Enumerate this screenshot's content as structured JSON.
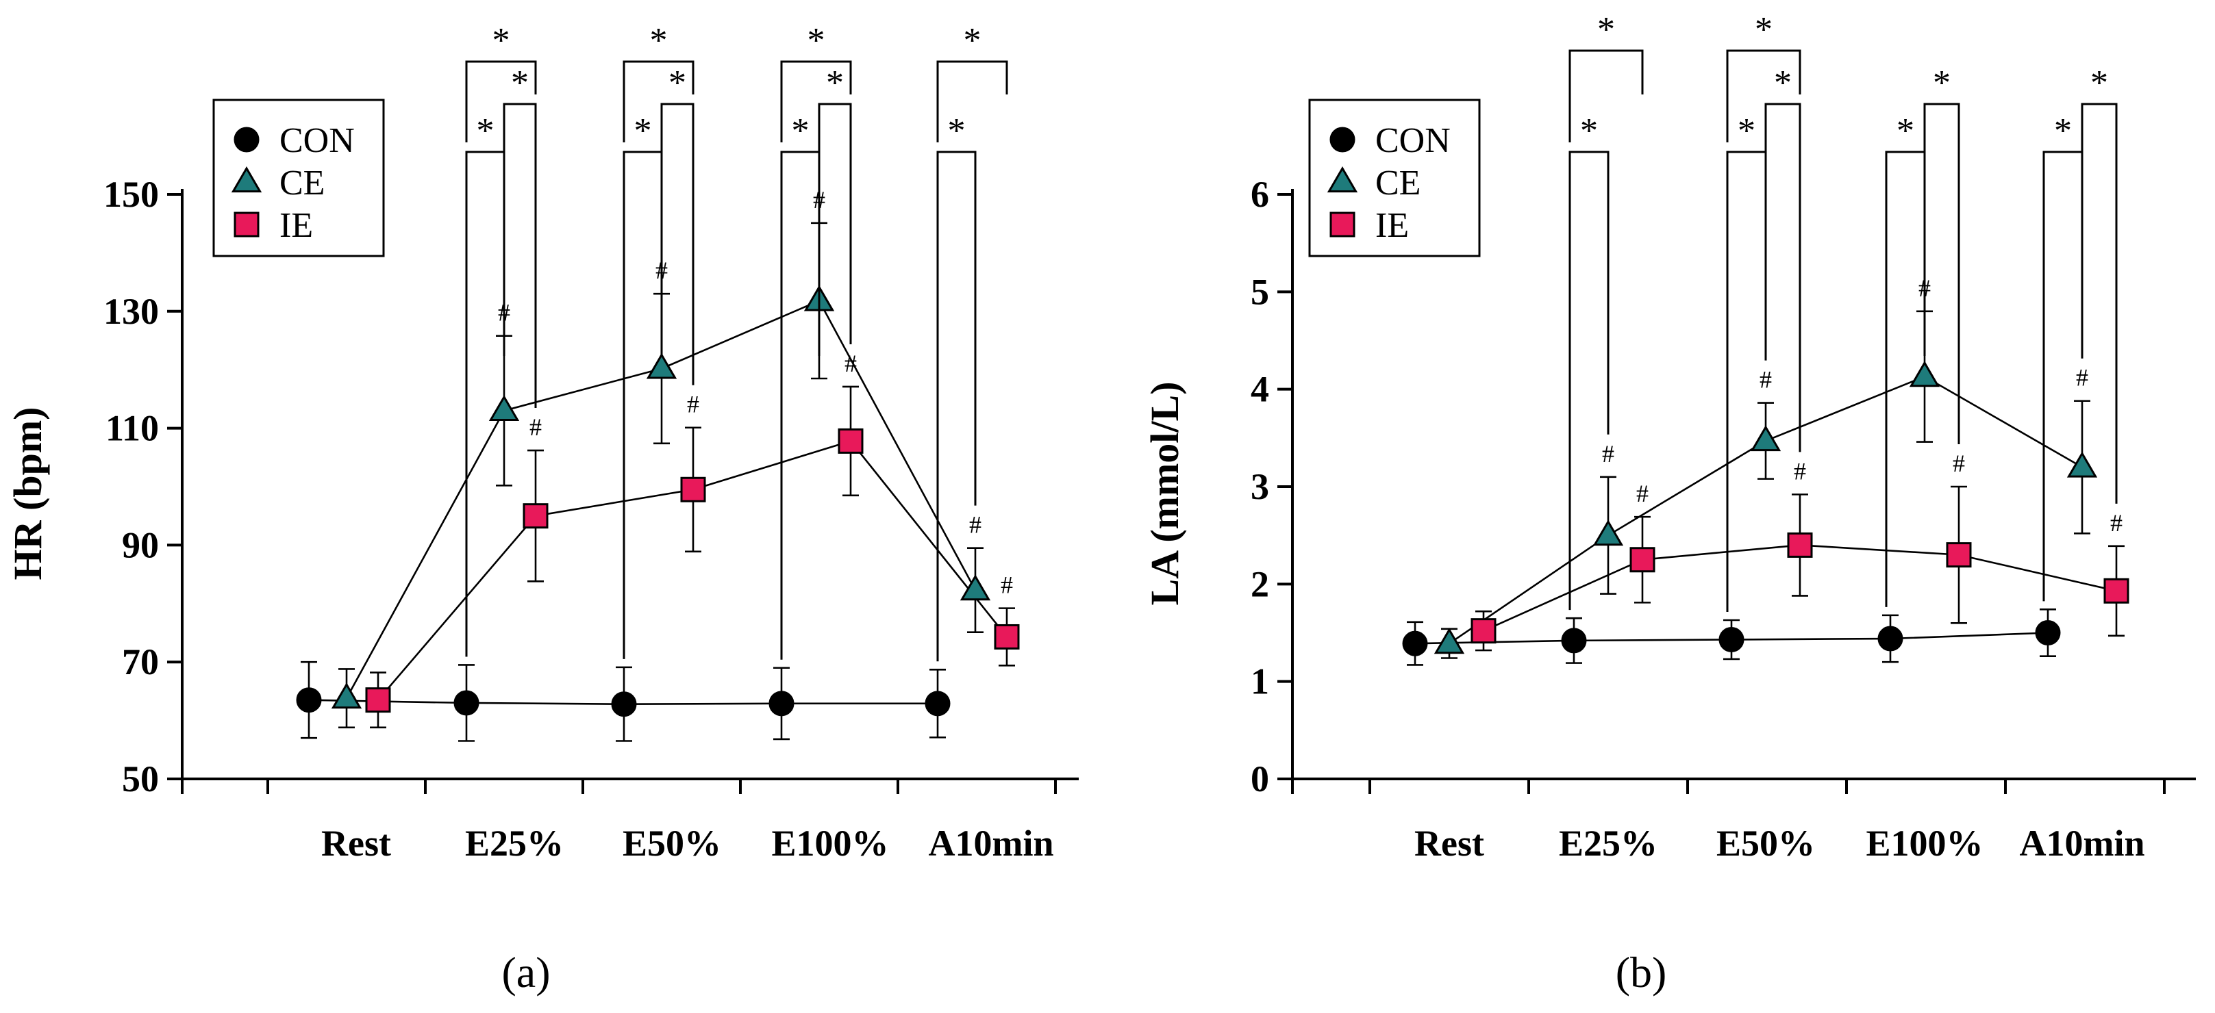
{
  "chart_data": [
    {
      "panel_label": "(a)",
      "type": "line",
      "ylabel": "HR (bpm)",
      "ylim": [
        50,
        150
      ],
      "yticks": [
        50,
        70,
        90,
        110,
        130,
        150
      ],
      "categories": [
        "Rest",
        "E25%",
        "E50%",
        "E100%",
        "A10min"
      ],
      "series": [
        {
          "name": "CON",
          "marker": "circle",
          "color": "#000000",
          "values": [
            63.5,
            63,
            62.8,
            62.9,
            62.9
          ],
          "errors": [
            6.5,
            6.5,
            6.3,
            6.1,
            5.8
          ],
          "hash": [
            false,
            false,
            false,
            false,
            false
          ]
        },
        {
          "name": "CE",
          "marker": "triangle",
          "color": "#1E7B7B",
          "values": [
            63.8,
            113,
            120.2,
            131.8,
            82.3
          ],
          "errors": [
            5,
            12.8,
            12.8,
            13.3,
            7.2
          ],
          "hash": [
            false,
            true,
            true,
            true,
            true
          ]
        },
        {
          "name": "IE",
          "marker": "square",
          "color": "#E8195A",
          "values": [
            63.5,
            95,
            99.5,
            107.8,
            74.3
          ],
          "errors": [
            4.7,
            11.2,
            10.6,
            9.3,
            4.9
          ],
          "hash": [
            false,
            true,
            true,
            true,
            true
          ]
        }
      ],
      "hash_symbol": "#",
      "significance_symbol": "*",
      "significance": [
        {
          "stage": 1,
          "pairs": [
            "CON-CE",
            "CE-IE",
            "CON-IE"
          ]
        },
        {
          "stage": 2,
          "pairs": [
            "CON-CE",
            "CE-IE",
            "CON-IE"
          ]
        },
        {
          "stage": 3,
          "pairs": [
            "CON-CE",
            "CE-IE",
            "CON-IE"
          ]
        },
        {
          "stage": 4,
          "pairs": [
            "CON-CE",
            "CON-IE"
          ]
        }
      ]
    },
    {
      "panel_label": "(b)",
      "type": "line",
      "ylabel": "LA (mmol/L)",
      "ylim": [
        0,
        6
      ],
      "yticks": [
        0,
        1,
        2,
        3,
        4,
        5,
        6
      ],
      "categories": [
        "Rest",
        "E25%",
        "E50%",
        "E100%",
        "A10min"
      ],
      "series": [
        {
          "name": "CON",
          "marker": "circle",
          "color": "#000000",
          "values": [
            1.39,
            1.42,
            1.43,
            1.44,
            1.5
          ],
          "errors": [
            0.22,
            0.23,
            0.2,
            0.24,
            0.24
          ],
          "hash": [
            false,
            false,
            false,
            false,
            false
          ]
        },
        {
          "name": "CE",
          "marker": "triangle",
          "color": "#1E7B7B",
          "values": [
            1.39,
            2.5,
            3.47,
            4.13,
            3.2
          ],
          "errors": [
            0.15,
            0.6,
            0.39,
            0.67,
            0.68
          ],
          "hash": [
            false,
            true,
            true,
            true,
            true
          ]
        },
        {
          "name": "IE",
          "marker": "square",
          "color": "#E8195A",
          "values": [
            1.52,
            2.25,
            2.4,
            2.3,
            1.93
          ],
          "errors": [
            0.2,
            0.44,
            0.52,
            0.7,
            0.46
          ],
          "hash": [
            false,
            true,
            true,
            true,
            true
          ]
        }
      ],
      "hash_symbol": "#",
      "significance_symbol": "*",
      "significance": [
        {
          "stage": 1,
          "pairs": [
            "CON-CE",
            "CON-IE"
          ]
        },
        {
          "stage": 2,
          "pairs": [
            "CON-CE",
            "CE-IE",
            "CON-IE"
          ]
        },
        {
          "stage": 3,
          "pairs": [
            "CON-CE",
            "CE-IE"
          ]
        },
        {
          "stage": 4,
          "pairs": [
            "CON-CE",
            "CE-IE"
          ]
        }
      ]
    }
  ]
}
